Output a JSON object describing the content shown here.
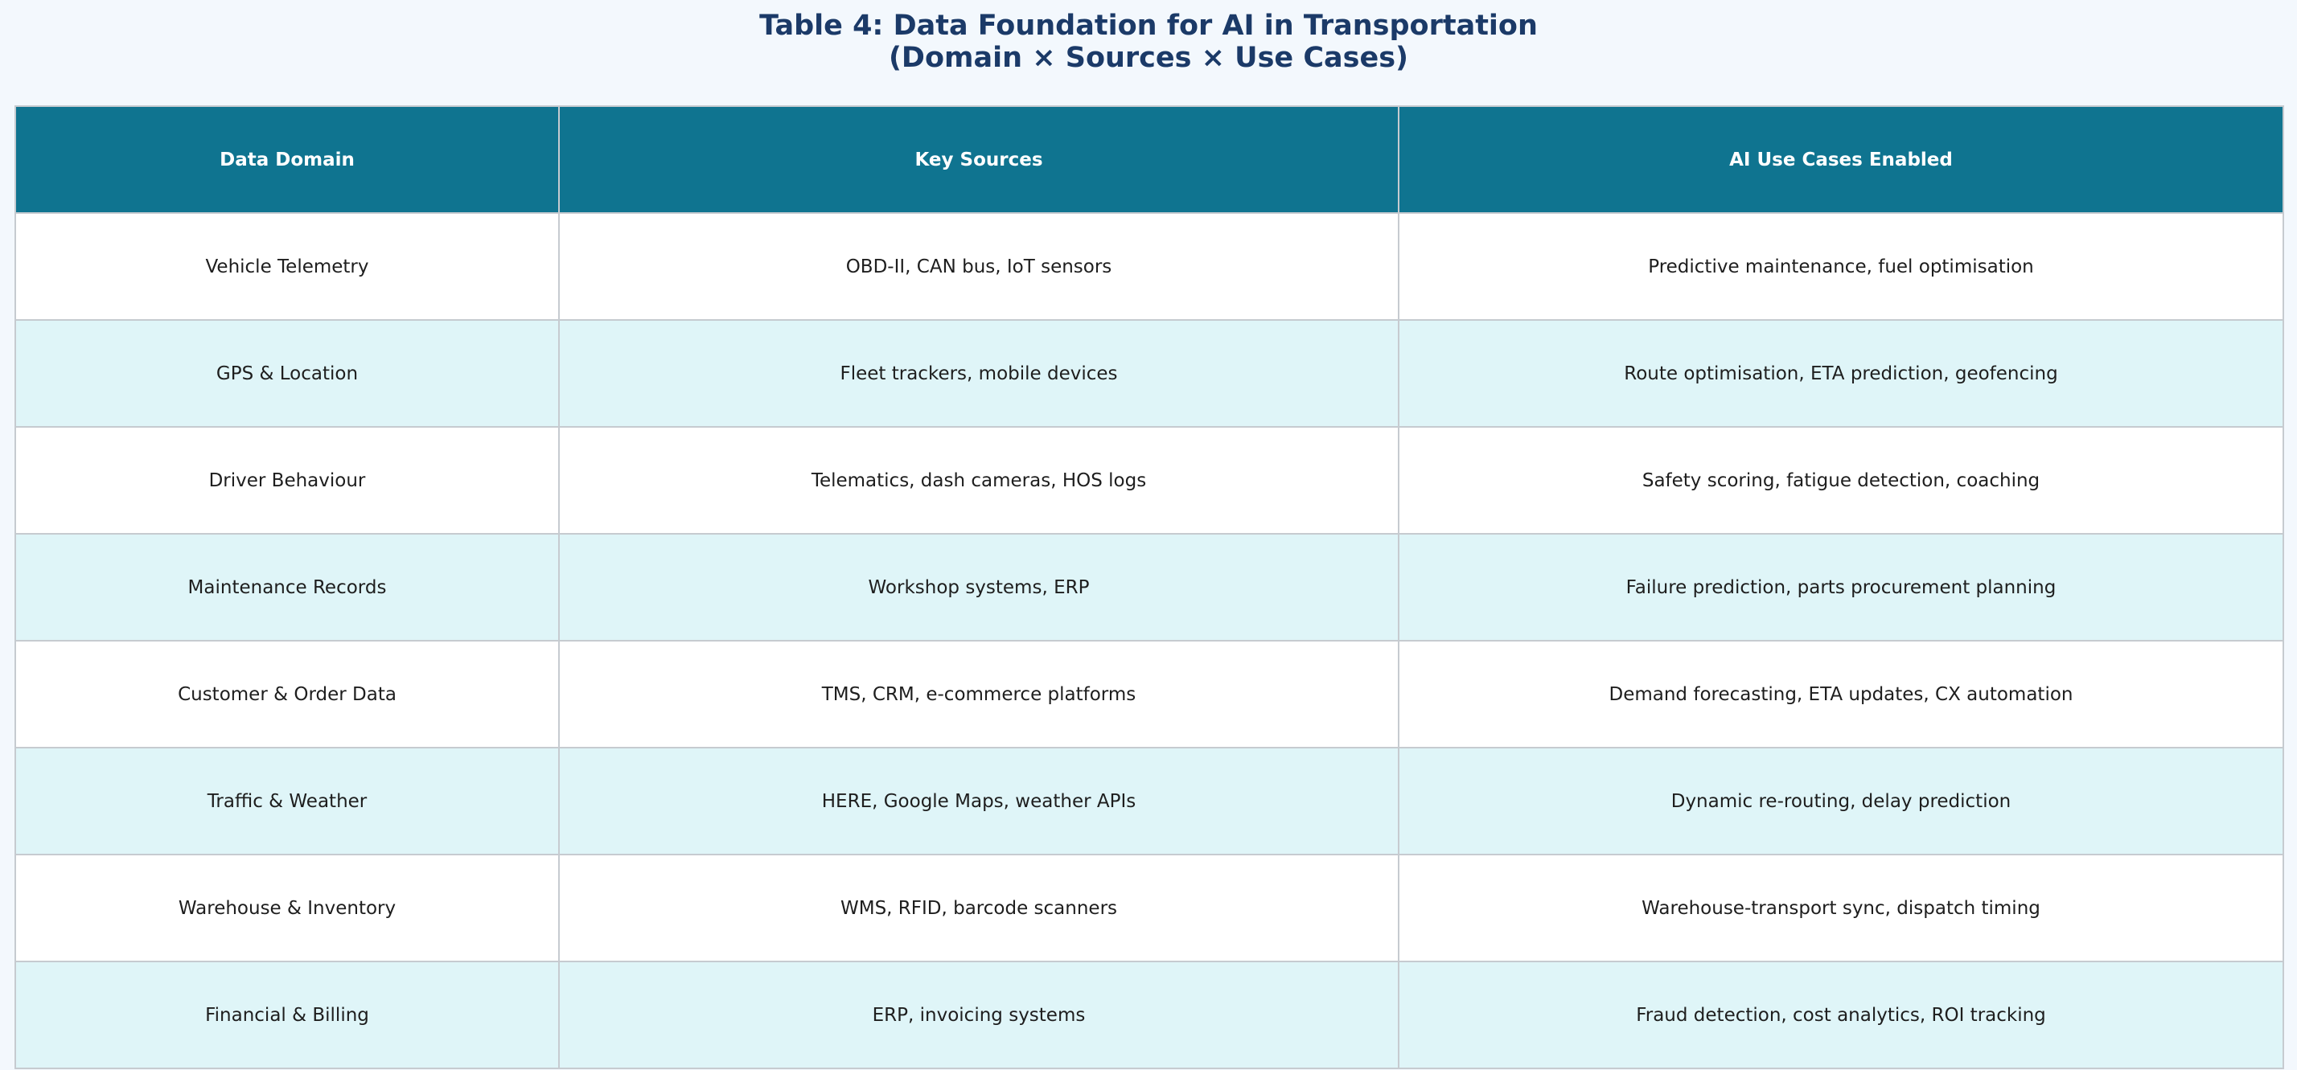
{
  "title": [
    "Table 4: Data Foundation for AI in Transportation",
    "(Domain × Sources × Use Cases)"
  ],
  "table": {
    "header": [
      "Data Domain",
      "Key Sources",
      "AI Use Cases Enabled"
    ],
    "rows": [
      [
        "Vehicle Telemetry",
        "OBD-II, CAN bus, IoT sensors",
        "Predictive maintenance, fuel optimisation"
      ],
      [
        "GPS & Location",
        "Fleet trackers, mobile devices",
        "Route optimisation, ETA prediction, geofencing"
      ],
      [
        "Driver Behaviour",
        "Telematics, dash cameras, HOS logs",
        "Safety scoring, fatigue detection, coaching"
      ],
      [
        "Maintenance Records",
        "Workshop systems, ERP",
        "Failure prediction, parts procurement planning"
      ],
      [
        "Customer & Order Data",
        "TMS, CRM, e-commerce platforms",
        "Demand forecasting, ETA updates, CX automation"
      ],
      [
        "Traffic & Weather",
        "HERE, Google Maps, weather APIs",
        "Dynamic re-routing, delay prediction"
      ],
      [
        "Warehouse & Inventory",
        "WMS, RFID, barcode scanners",
        "Warehouse-transport sync, dispatch timing"
      ],
      [
        "Financial & Billing",
        "ERP, invoicing systems",
        "Fraud detection, cost analytics, ROI tracking"
      ]
    ]
  }
}
